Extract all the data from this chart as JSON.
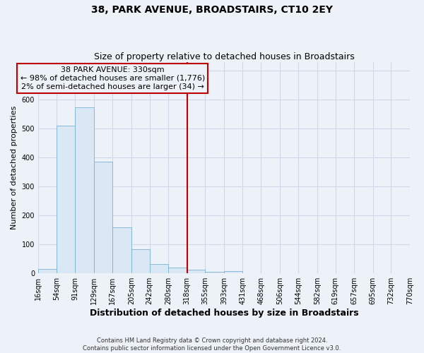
{
  "title": "38, PARK AVENUE, BROADSTAIRS, CT10 2EY",
  "subtitle": "Size of property relative to detached houses in Broadstairs",
  "xlabel": "Distribution of detached houses by size in Broadstairs",
  "ylabel": "Number of detached properties",
  "bin_edges": [
    16,
    54,
    91,
    129,
    167,
    205,
    242,
    280,
    318,
    355,
    393,
    431,
    468,
    506,
    544,
    582,
    619,
    657,
    695,
    732,
    770
  ],
  "bar_heights": [
    15,
    510,
    575,
    385,
    160,
    83,
    33,
    20,
    13,
    5,
    8,
    0,
    0,
    0,
    0,
    0,
    0,
    0,
    0,
    0
  ],
  "bar_color": "#dae8f5",
  "bar_edge_color": "#7ab0d4",
  "vline_x": 318,
  "vline_color": "#c00000",
  "annotation_line1": "38 PARK AVENUE: 330sqm",
  "annotation_line2": "← 98% of detached houses are smaller (1,776)",
  "annotation_line3": "2% of semi-detached houses are larger (34) →",
  "annotation_box_edgecolor": "#c00000",
  "ylim": [
    0,
    730
  ],
  "yticks": [
    0,
    100,
    200,
    300,
    400,
    500,
    600,
    700
  ],
  "tick_labels": [
    "16sqm",
    "54sqm",
    "91sqm",
    "129sqm",
    "167sqm",
    "205sqm",
    "242sqm",
    "280sqm",
    "318sqm",
    "355sqm",
    "393sqm",
    "431sqm",
    "468sqm",
    "506sqm",
    "544sqm",
    "582sqm",
    "619sqm",
    "657sqm",
    "695sqm",
    "732sqm",
    "770sqm"
  ],
  "footer_line1": "Contains HM Land Registry data © Crown copyright and database right 2024.",
  "footer_line2": "Contains public sector information licensed under the Open Government Licence v3.0.",
  "bg_color": "#edf1f8",
  "grid_color": "#d0d8e8",
  "title_fontsize": 10,
  "subtitle_fontsize": 9,
  "ylabel_fontsize": 8,
  "xlabel_fontsize": 9,
  "tick_fontsize": 7,
  "annot_fontsize": 8
}
